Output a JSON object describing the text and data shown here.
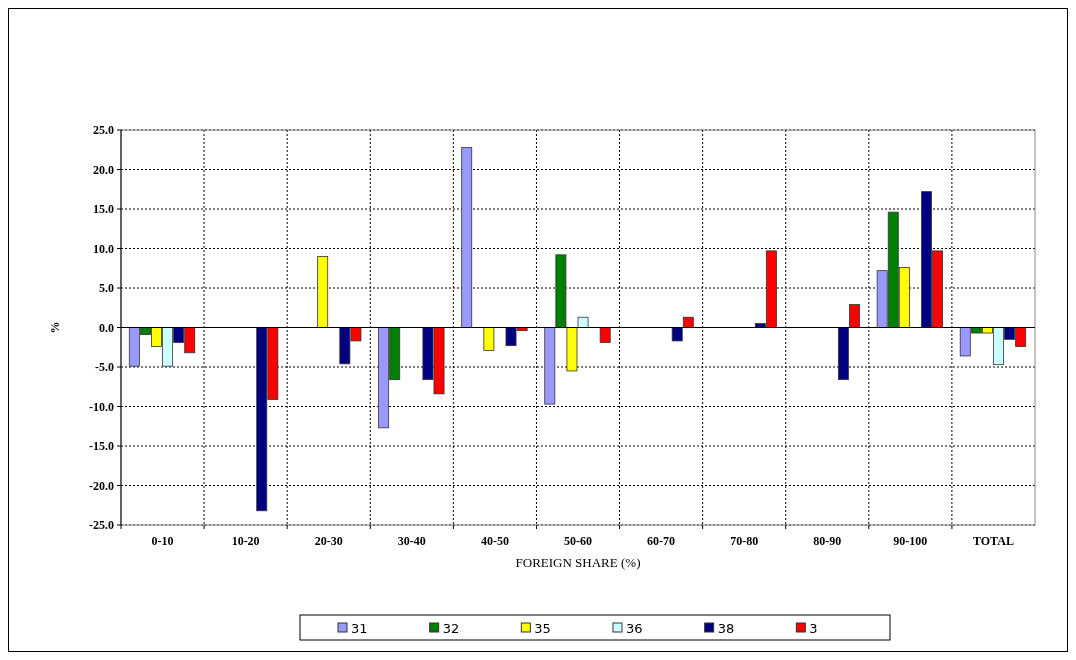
{
  "chart_data": {
    "type": "bar",
    "xlabel": "FOREIGN SHARE (%)",
    "ylabel": "%",
    "categories": [
      "0-10",
      "10-20",
      "20-30",
      "30-40",
      "40-50",
      "50-60",
      "60-70",
      "70-80",
      "80-90",
      "90-100",
      "TOTAL"
    ],
    "series": [
      {
        "name": "31",
        "color": "#9999ff",
        "values": [
          -4.9,
          null,
          null,
          -12.7,
          22.8,
          -9.7,
          null,
          null,
          null,
          7.2,
          -3.6
        ]
      },
      {
        "name": "32",
        "color": "#008000",
        "values": [
          -0.9,
          null,
          null,
          -6.6,
          null,
          9.2,
          null,
          null,
          null,
          14.6,
          -0.7
        ]
      },
      {
        "name": "35",
        "color": "#ffff00",
        "values": [
          -2.4,
          null,
          9.0,
          null,
          -2.9,
          -5.5,
          null,
          null,
          null,
          7.6,
          -0.7
        ]
      },
      {
        "name": "36",
        "color": "#ccffff",
        "values": [
          -4.9,
          null,
          null,
          null,
          null,
          1.3,
          null,
          null,
          null,
          null,
          -4.7
        ]
      },
      {
        "name": "38",
        "color": "#000080",
        "values": [
          -1.9,
          -23.2,
          -4.6,
          -6.6,
          -2.3,
          null,
          -1.7,
          0.5,
          -6.6,
          17.2,
          -1.5
        ]
      },
      {
        "name": "3",
        "color": "#ff0000",
        "values": [
          -3.2,
          -9.1,
          -1.7,
          -8.4,
          -0.4,
          -1.9,
          1.3,
          9.7,
          2.9,
          9.7,
          -2.4
        ]
      }
    ],
    "ylim": [
      -25,
      25
    ],
    "yticks": [
      {
        "value": -25,
        "label": "-25.0"
      },
      {
        "value": -20,
        "label": "-20.0"
      },
      {
        "value": -15,
        "label": "-15.0"
      },
      {
        "value": -10,
        "label": "-10.0"
      },
      {
        "value": -5,
        "label": "-5.0"
      },
      {
        "value": 0,
        "label": "0.0"
      },
      {
        "value": 5,
        "label": "5.0"
      },
      {
        "value": 10,
        "label": "10.0"
      },
      {
        "value": 15,
        "label": "15.0"
      },
      {
        "value": 20,
        "label": "20.0"
      },
      {
        "value": 25,
        "label": "25.0"
      }
    ],
    "grid": true,
    "legend": "bottom"
  }
}
